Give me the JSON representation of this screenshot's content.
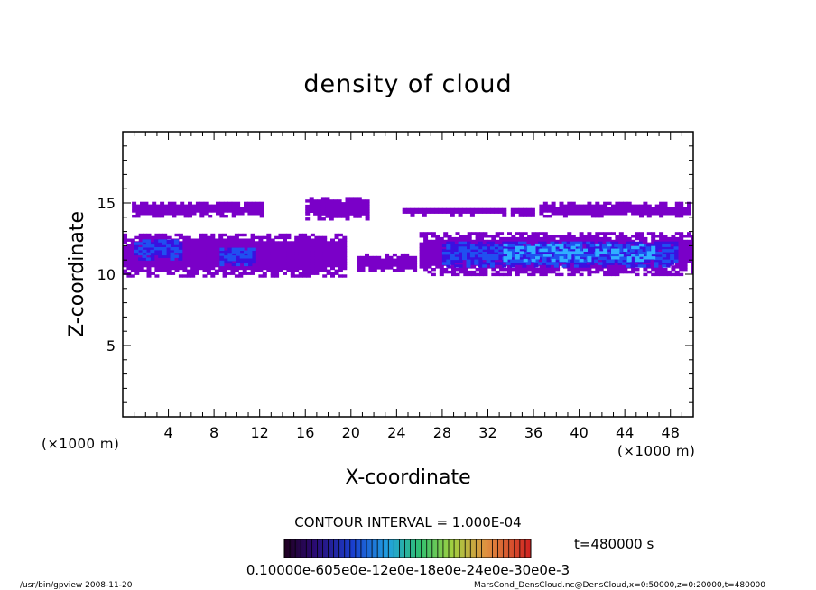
{
  "chart_data": {
    "type": "heatmap",
    "title": "density of cloud",
    "xlabel": "X-coordinate",
    "ylabel": "Z-coordinate",
    "x_unit": "(×1000 m)",
    "x_unit_right": "(×1000 m)",
    "xlim": [
      0,
      50
    ],
    "ylim": [
      0,
      20
    ],
    "x_ticks": [
      4,
      8,
      12,
      16,
      20,
      24,
      28,
      32,
      36,
      40,
      44,
      48
    ],
    "y_ticks": [
      5,
      10,
      15
    ],
    "grid": false,
    "contour_interval": "CONTOUR INTERVAL = 1.000E-04",
    "time_label": "t=480000 s",
    "colorbar_labels": "0.10000e-605e0e-12e0e-18e0e-24e0e-30e0e-3",
    "colorbar_labels_text": "0.10000e-605e-12e0e-18e0e-24e0e-30e0e-3",
    "colorbar_label_text": "0.10000e-605e-12e0e-18e0e-24e0e-30e0e-3",
    "colorbar_text": "0.10000e-605e-12e0e-18e0e-24e0e-30e0e-3",
    "colorbar_caption": "0.10000e-605e-12e0e-18e0e-24e0e-30e0e-3",
    "footer_left": "/usr/bin/gpview   2008-11-20",
    "footer_right": "MarsCond_DensCloud.nc@DensCloud,x=0:50000,z=0:20000,t=480000",
    "colors": {
      "low": "#7a00c8",
      "mid_low": "#3a10e0",
      "mid": "#2050f0",
      "high": "#30b0ff"
    },
    "upper_layer_patches": [
      {
        "x": [
          0.8,
          12.0
        ],
        "z": [
          14.0,
          15.0
        ]
      },
      {
        "x": [
          16.0,
          21.5
        ],
        "z": [
          13.8,
          15.4
        ]
      },
      {
        "x": [
          24.5,
          33.5
        ],
        "z": [
          14.1,
          14.6
        ]
      },
      {
        "x": [
          34.0,
          36.0
        ],
        "z": [
          14.1,
          14.6
        ]
      },
      {
        "x": [
          36.5,
          49.5
        ],
        "z": [
          14.0,
          14.9
        ]
      }
    ],
    "lower_layer_patches": [
      {
        "x": [
          0.0,
          19.5
        ],
        "z": [
          9.8,
          12.8
        ]
      },
      {
        "x": [
          20.5,
          25.5
        ],
        "z": [
          10.2,
          11.3
        ]
      },
      {
        "x": [
          26.0,
          50.0
        ],
        "z": [
          9.9,
          12.9
        ]
      }
    ],
    "dense_cores": [
      {
        "x": [
          1.0,
          5.0
        ],
        "z": [
          11.0,
          12.3
        ]
      },
      {
        "x": [
          8.5,
          11.5
        ],
        "z": [
          10.6,
          11.8
        ]
      },
      {
        "x": [
          28.0,
          48.5
        ],
        "z": [
          10.5,
          12.2
        ]
      }
    ],
    "peak_core": {
      "x": [
        33.0,
        46.5
      ],
      "z": [
        10.9,
        12.0
      ]
    }
  }
}
